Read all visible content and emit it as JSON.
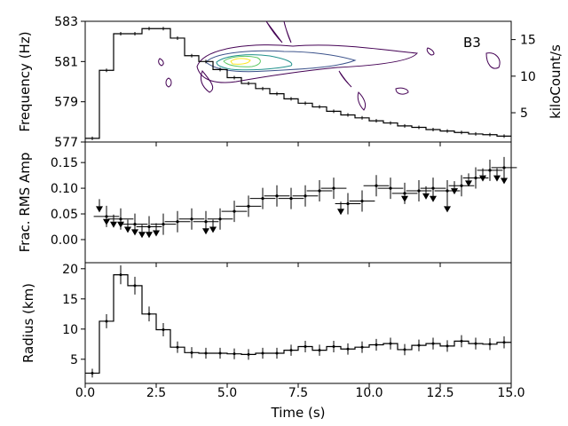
{
  "chart_data": [
    {
      "type": "line",
      "panel": "top",
      "annotation": "B3",
      "ylabel": "Frequency (Hz)",
      "ylabel_right": "kiloCount/s",
      "ylim": [
        577,
        583
      ],
      "yticks": [
        577,
        579,
        581,
        583
      ],
      "y2lim": [
        1,
        17.5
      ],
      "y2ticks": [
        5,
        10,
        15
      ],
      "contour_colors": [
        "#440154",
        "#3b528b",
        "#21918c",
        "#5ec962",
        "#fde725"
      ],
      "lightcurve": {
        "name": "count rate (kiloCount/s)",
        "t": [
          0.25,
          0.75,
          1.25,
          1.75,
          2.25,
          2.75,
          3.25,
          3.75,
          4.25,
          4.75,
          5.25,
          5.75,
          6.25,
          6.75,
          7.25,
          7.75,
          8.25,
          8.75,
          9.25,
          9.75,
          10.25,
          10.75,
          11.25,
          11.75,
          12.25,
          12.75,
          13.25,
          13.75,
          14.25,
          14.75
        ],
        "v": [
          1.5,
          10.8,
          15.8,
          15.8,
          16.5,
          16.5,
          15.2,
          12.8,
          12.0,
          10.9,
          9.8,
          9.0,
          8.3,
          7.6,
          6.9,
          6.3,
          5.8,
          5.2,
          4.7,
          4.3,
          3.9,
          3.6,
          3.2,
          3.0,
          2.7,
          2.5,
          2.3,
          2.1,
          2.0,
          1.8
        ]
      }
    },
    {
      "type": "scatter",
      "panel": "middle",
      "ylabel": "Frac. RMS Amp",
      "ylim": [
        -0.045,
        0.19
      ],
      "yticks": [
        0.0,
        0.05,
        0.1,
        0.15
      ],
      "ytick_labels": [
        "0.00",
        "0.05",
        "0.10",
        "0.15"
      ],
      "detections": {
        "t": [
          0.75,
          1.25,
          1.75,
          2.25,
          2.75,
          3.25,
          3.75,
          4.25,
          4.75,
          5.25,
          5.75,
          6.25,
          6.75,
          7.25,
          7.75,
          8.25,
          8.75,
          9.25,
          9.75,
          10.25,
          10.75,
          11.25,
          11.75,
          12.25,
          12.75,
          13.25,
          13.75,
          14.25,
          14.75
        ],
        "v": [
          0.045,
          0.04,
          0.03,
          0.025,
          0.03,
          0.035,
          0.04,
          0.035,
          0.04,
          0.055,
          0.065,
          0.08,
          0.085,
          0.08,
          0.085,
          0.095,
          0.1,
          0.07,
          0.075,
          0.105,
          0.1,
          0.09,
          0.095,
          0.1,
          0.095,
          0.105,
          0.12,
          0.135,
          0.14
        ]
      },
      "upper_limits": {
        "t": [
          0.5,
          0.75,
          1.0,
          1.25,
          1.5,
          1.75,
          2.0,
          2.25,
          2.5,
          4.25,
          4.5,
          9.0,
          11.25,
          12.0,
          12.25,
          12.75,
          13.0,
          13.5,
          14.0,
          14.5,
          14.75
        ],
        "v": [
          0.065,
          0.04,
          0.035,
          0.035,
          0.025,
          0.02,
          0.015,
          0.015,
          0.018,
          0.022,
          0.025,
          0.06,
          0.085,
          0.09,
          0.085,
          0.065,
          0.1,
          0.115,
          0.125,
          0.125,
          0.12
        ]
      }
    },
    {
      "type": "line",
      "panel": "bottom",
      "ylabel": "Radius (km)",
      "xlabel": "Time (s)",
      "xlim": [
        0,
        15
      ],
      "xticks": [
        0.0,
        2.5,
        5.0,
        7.5,
        10.0,
        12.5,
        15.0
      ],
      "xtick_labels": [
        "0.0",
        "2.5",
        "5.0",
        "7.5",
        "10.0",
        "12.5",
        "15.0"
      ],
      "ylim": [
        1,
        21
      ],
      "yticks": [
        5,
        10,
        15,
        20
      ],
      "series": [
        {
          "name": "Radius (km)",
          "t": [
            0.25,
            0.75,
            1.25,
            1.75,
            2.25,
            2.75,
            3.25,
            3.75,
            4.25,
            4.75,
            5.25,
            5.75,
            6.25,
            6.75,
            7.25,
            7.75,
            8.25,
            8.75,
            9.25,
            9.75,
            10.25,
            10.75,
            11.25,
            11.75,
            12.25,
            12.75,
            13.25,
            13.75,
            14.25,
            14.75
          ],
          "values": [
            2.7,
            11.3,
            19.0,
            17.2,
            12.5,
            9.9,
            7.0,
            6.1,
            6.0,
            6.0,
            5.9,
            5.8,
            6.0,
            6.0,
            6.5,
            7.1,
            6.5,
            7.1,
            6.7,
            7.0,
            7.4,
            7.6,
            6.6,
            7.3,
            7.6,
            7.2,
            8.0,
            7.6,
            7.5,
            7.8
          ]
        }
      ]
    }
  ]
}
